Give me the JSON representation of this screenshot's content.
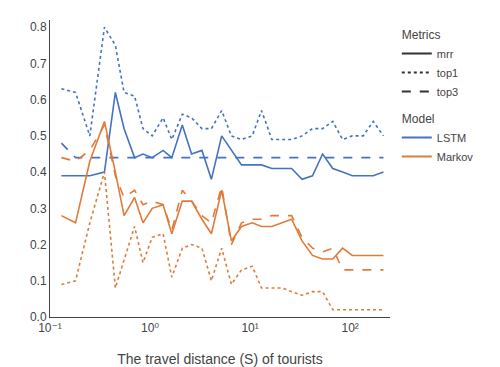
{
  "chart_data": {
    "type": "line",
    "xlabel": "The travel distance (S) of tourists",
    "log": "x",
    "grid": false,
    "legend": "upper right",
    "x": [
      0.13,
      0.18,
      0.25,
      0.35,
      0.45,
      0.55,
      0.7,
      0.85,
      1.05,
      1.35,
      1.65,
      2.1,
      2.6,
      3.3,
      4.1,
      5.2,
      6.5,
      8.2,
      10.5,
      13.0,
      16.5,
      21.0,
      26.0,
      33.0,
      42.0,
      53.0,
      67.0,
      84.0,
      105.0,
      135.0,
      170.0,
      215.0
    ],
    "xlim": [
      0.1,
      250
    ],
    "xticks": [
      {
        "value": 0.1,
        "label": "10⁻¹"
      },
      {
        "value": 1,
        "label": "10⁰"
      },
      {
        "value": 10,
        "label": "10¹"
      },
      {
        "value": 100,
        "label": "10²"
      }
    ],
    "ylim": [
      0.0,
      0.82
    ],
    "yticks": [
      {
        "value": 0.0,
        "label": "0.0"
      },
      0.1,
      0.2,
      0.3,
      0.4,
      0.5,
      0.6,
      0.7,
      0.8
    ],
    "series": [
      {
        "color": "#4472c4",
        "line_style": "solid",
        "values": [
          0.39,
          0.39,
          0.39,
          0.4,
          0.62,
          0.52,
          0.44,
          0.45,
          0.44,
          0.46,
          0.44,
          0.53,
          0.45,
          0.46,
          0.38,
          0.5,
          0.46,
          0.42,
          0.42,
          0.42,
          0.41,
          0.41,
          0.41,
          0.38,
          0.39,
          0.45,
          0.41,
          0.4,
          0.39,
          0.39,
          0.39,
          0.4
        ]
      },
      {
        "color": "#4472c4",
        "line_style": "dotted",
        "values": [
          0.63,
          0.62,
          0.5,
          0.8,
          0.75,
          0.62,
          0.61,
          0.52,
          0.5,
          0.55,
          0.49,
          0.56,
          0.55,
          0.52,
          0.52,
          0.57,
          0.5,
          0.49,
          0.5,
          0.57,
          0.49,
          0.49,
          0.49,
          0.5,
          0.52,
          0.52,
          0.54,
          0.49,
          0.5,
          0.5,
          0.54,
          0.5
        ]
      },
      {
        "color": "#4472c4",
        "line_style": "dashed",
        "values": [
          0.48,
          0.44,
          0.44,
          0.44,
          0.44,
          0.44,
          0.44,
          0.44,
          0.44,
          0.44,
          0.44,
          0.44,
          0.44,
          0.44,
          0.44,
          0.44,
          0.44,
          0.44,
          0.44,
          0.44,
          0.44,
          0.44,
          0.44,
          0.44,
          0.44,
          0.44,
          0.44,
          0.44,
          0.44,
          0.44,
          0.44,
          0.44
        ]
      },
      {
        "color": "#e07b39",
        "line_style": "solid",
        "values": [
          0.28,
          0.26,
          0.43,
          0.54,
          0.4,
          0.28,
          0.33,
          0.26,
          0.3,
          0.31,
          0.23,
          0.32,
          0.32,
          0.27,
          0.23,
          0.35,
          0.21,
          0.25,
          0.26,
          0.25,
          0.25,
          0.26,
          0.27,
          0.21,
          0.17,
          0.16,
          0.16,
          0.19,
          0.17,
          0.17,
          0.17,
          0.17
        ]
      },
      {
        "color": "#e07b39",
        "line_style": "dotted",
        "values": [
          0.09,
          0.1,
          0.26,
          0.4,
          0.08,
          0.16,
          0.25,
          0.15,
          0.22,
          0.23,
          0.11,
          0.19,
          0.2,
          0.19,
          0.1,
          0.19,
          0.09,
          0.13,
          0.14,
          0.08,
          0.08,
          0.08,
          0.07,
          0.06,
          0.07,
          0.07,
          0.02,
          0.02,
          0.02,
          0.02,
          0.02,
          0.02
        ]
      },
      {
        "color": "#e07b39",
        "line_style": "dashed",
        "values": [
          0.44,
          0.43,
          0.46,
          0.53,
          0.39,
          0.33,
          0.35,
          0.31,
          0.32,
          0.31,
          0.24,
          0.35,
          0.32,
          0.28,
          0.26,
          0.36,
          0.2,
          0.26,
          0.27,
          0.27,
          0.28,
          0.28,
          0.28,
          0.22,
          0.19,
          0.18,
          0.19,
          0.13,
          0.13,
          0.13,
          0.13,
          0.13
        ]
      }
    ],
    "legend_groups": [
      {
        "title": "Metrics",
        "entries": [
          {
            "name": "mrr",
            "color": "#333333",
            "line_style": "solid"
          },
          {
            "name": "top1",
            "color": "#333333",
            "line_style": "dotted"
          },
          {
            "name": "top3",
            "color": "#333333",
            "line_style": "dashed"
          }
        ]
      },
      {
        "title": "Model",
        "entries": [
          {
            "name": "LSTM",
            "color": "#4472c4",
            "line_style": "solid"
          },
          {
            "name": "Markov",
            "color": "#e07b39",
            "line_style": "solid"
          }
        ]
      }
    ]
  }
}
